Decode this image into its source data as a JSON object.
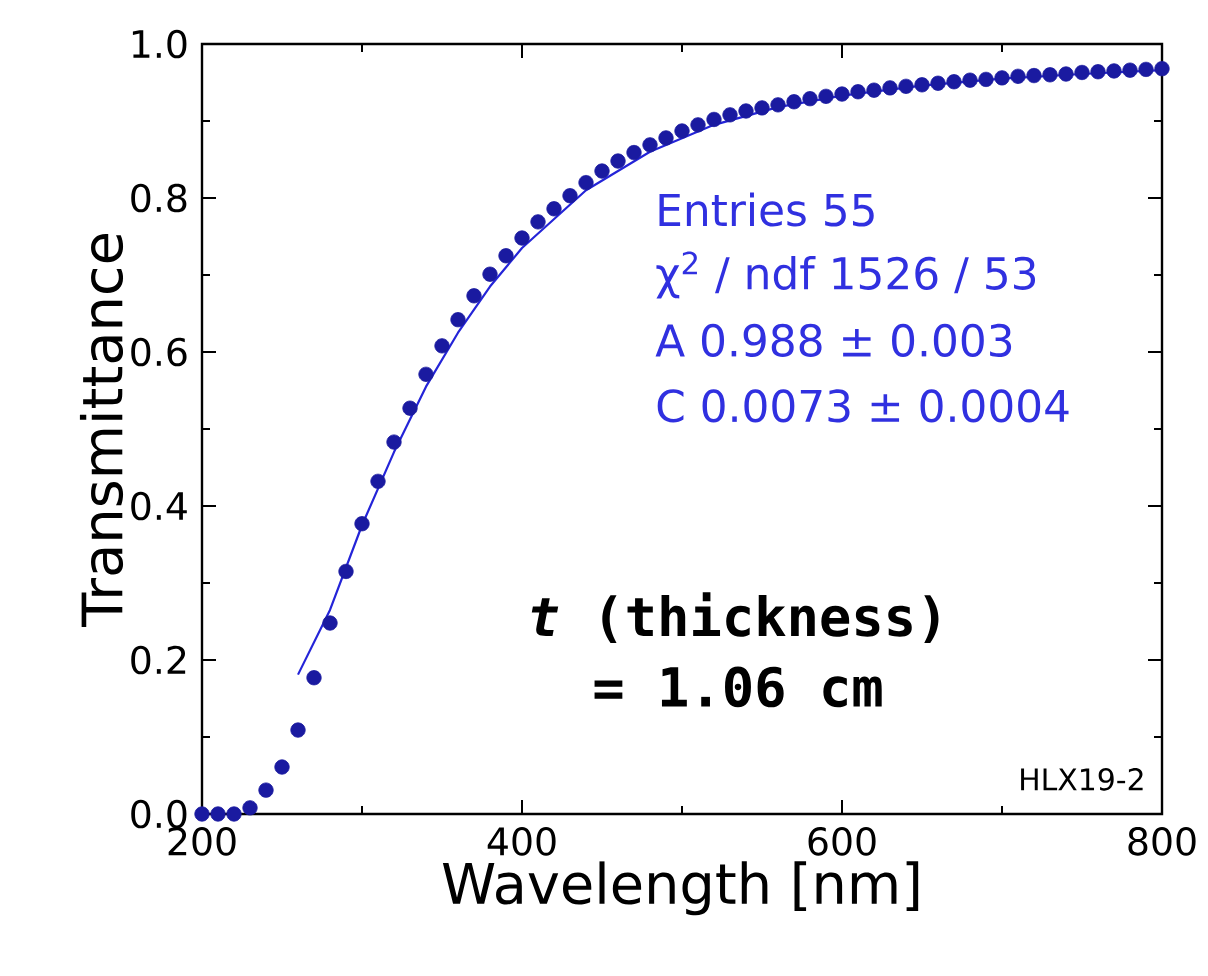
{
  "chart_data": {
    "type": "scatter",
    "xlabel": "Wavelength [nm]",
    "ylabel": "Transmittance",
    "xlim": [
      200,
      800
    ],
    "ylim": [
      0,
      1
    ],
    "xticks": [
      200,
      400,
      600,
      800
    ],
    "yticks": [
      {
        "value": 0,
        "label": "0.0"
      },
      {
        "value": 0.2,
        "label": "0.2"
      },
      {
        "value": 0.4,
        "label": "0.4"
      },
      {
        "value": 0.6,
        "label": "0.6"
      },
      {
        "value": 0.8,
        "label": "0.8"
      },
      {
        "value": 1,
        "label": "1.0"
      }
    ],
    "grid": false,
    "series": [
      {
        "color": "#1a1aa0",
        "marker": "circle",
        "x": [
          200,
          210,
          220,
          230,
          240,
          250,
          260,
          270,
          280,
          290,
          300,
          310,
          320,
          330,
          340,
          350,
          360,
          370,
          380,
          390,
          400,
          410,
          420,
          430,
          440,
          450,
          460,
          470,
          480,
          490,
          500,
          510,
          520,
          530,
          540,
          550,
          560,
          570,
          580,
          590,
          600,
          610,
          620,
          630,
          640,
          650,
          660,
          670,
          680,
          690,
          700,
          710,
          720,
          730,
          740,
          750,
          760,
          770,
          780,
          790,
          800
        ],
        "values": [
          0.0,
          0.0,
          0.0,
          0.008,
          0.031,
          0.061,
          0.109,
          0.177,
          0.248,
          0.315,
          0.377,
          0.432,
          0.483,
          0.527,
          0.571,
          0.608,
          0.642,
          0.673,
          0.701,
          0.725,
          0.748,
          0.769,
          0.786,
          0.803,
          0.82,
          0.835,
          0.848,
          0.859,
          0.869,
          0.878,
          0.887,
          0.895,
          0.902,
          0.908,
          0.913,
          0.917,
          0.921,
          0.925,
          0.929,
          0.932,
          0.935,
          0.938,
          0.94,
          0.943,
          0.945,
          0.947,
          0.949,
          0.951,
          0.953,
          0.954,
          0.956,
          0.958,
          0.959,
          0.96,
          0.961,
          0.963,
          0.964,
          0.965,
          0.966,
          0.967,
          0.968
        ]
      },
      {
        "type": "line",
        "marker": "none",
        "color": "#2424d8",
        "x": [
          260,
          280,
          300,
          320,
          340,
          360,
          380,
          400,
          440,
          480,
          520,
          560,
          600,
          650,
          700,
          750,
          800
        ],
        "values": [
          0.181,
          0.265,
          0.375,
          0.47,
          0.555,
          0.625,
          0.685,
          0.735,
          0.81,
          0.86,
          0.895,
          0.918,
          0.933,
          0.946,
          0.955,
          0.961,
          0.966
        ]
      }
    ],
    "annotations": [
      "Entries   55",
      "χ$^{2}$ / ndf   1526 / 53",
      "A   0.988 ± 0.003",
      "C   0.0073 ± 0.0004",
      "*t* (thickness)",
      "= 1.06 cm",
      "HLX19-2"
    ]
  }
}
